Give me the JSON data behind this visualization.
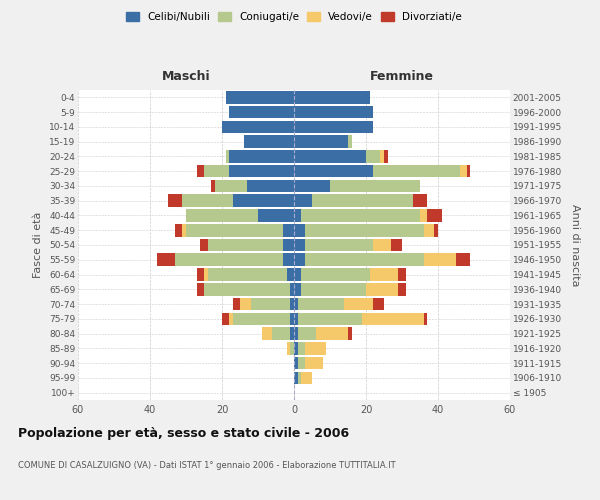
{
  "age_groups": [
    "100+",
    "95-99",
    "90-94",
    "85-89",
    "80-84",
    "75-79",
    "70-74",
    "65-69",
    "60-64",
    "55-59",
    "50-54",
    "45-49",
    "40-44",
    "35-39",
    "30-34",
    "25-29",
    "20-24",
    "15-19",
    "10-14",
    "5-9",
    "0-4"
  ],
  "birth_years": [
    "≤ 1905",
    "1906-1910",
    "1911-1915",
    "1916-1920",
    "1921-1925",
    "1926-1930",
    "1931-1935",
    "1936-1940",
    "1941-1945",
    "1946-1950",
    "1951-1955",
    "1956-1960",
    "1961-1965",
    "1966-1970",
    "1971-1975",
    "1976-1980",
    "1981-1985",
    "1986-1990",
    "1991-1995",
    "1996-2000",
    "2001-2005"
  ],
  "male": {
    "celibi": [
      0,
      0,
      0,
      0,
      1,
      1,
      1,
      1,
      2,
      3,
      3,
      3,
      10,
      17,
      13,
      18,
      18,
      14,
      20,
      18,
      19
    ],
    "coniugati": [
      0,
      0,
      0,
      1,
      5,
      16,
      11,
      24,
      22,
      30,
      21,
      27,
      20,
      14,
      9,
      7,
      1,
      0,
      0,
      0,
      0
    ],
    "vedovi": [
      0,
      0,
      0,
      1,
      3,
      1,
      3,
      0,
      1,
      0,
      0,
      1,
      0,
      0,
      0,
      0,
      0,
      0,
      0,
      0,
      0
    ],
    "divorziati": [
      0,
      0,
      0,
      0,
      0,
      2,
      2,
      2,
      2,
      5,
      2,
      2,
      0,
      4,
      1,
      2,
      0,
      0,
      0,
      0,
      0
    ]
  },
  "female": {
    "nubili": [
      0,
      1,
      1,
      1,
      1,
      1,
      1,
      2,
      2,
      3,
      3,
      3,
      2,
      5,
      10,
      22,
      20,
      15,
      22,
      22,
      21
    ],
    "coniugate": [
      0,
      1,
      2,
      2,
      5,
      18,
      13,
      18,
      19,
      33,
      19,
      33,
      33,
      28,
      25,
      24,
      4,
      1,
      0,
      0,
      0
    ],
    "vedove": [
      0,
      3,
      5,
      6,
      9,
      17,
      8,
      9,
      8,
      9,
      5,
      3,
      2,
      0,
      0,
      2,
      1,
      0,
      0,
      0,
      0
    ],
    "divorziate": [
      0,
      0,
      0,
      0,
      1,
      1,
      3,
      2,
      2,
      4,
      3,
      1,
      4,
      4,
      0,
      1,
      1,
      0,
      0,
      0,
      0
    ]
  },
  "colors": {
    "celibi": "#3a6ea5",
    "coniugati": "#b5c98e",
    "vedovi": "#f5c96a",
    "divorziati": "#c0392b"
  },
  "xlim": 60,
  "title": "Popolazione per età, sesso e stato civile - 2006",
  "subtitle": "COMUNE DI CASALZUIGNO (VA) - Dati ISTAT 1° gennaio 2006 - Elaborazione TUTTITALIA.IT",
  "ylabel_left": "Fasce di età",
  "ylabel_right": "Anni di nascita",
  "xlabel_left": "Maschi",
  "xlabel_right": "Femmine",
  "background_color": "#f0f0f0",
  "plot_bg": "#ffffff"
}
